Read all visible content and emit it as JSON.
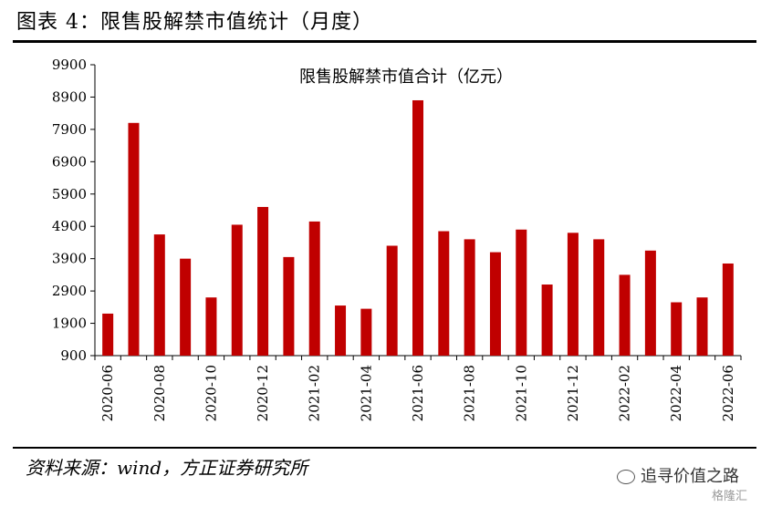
{
  "figure_title": "图表 4：限售股解禁市值统计（月度）",
  "source": "资料来源：wind，方正证券研究所",
  "watermark": "追寻价值之路",
  "watermark_logo": "格隆汇",
  "colors": {
    "bar": "#C00000",
    "axis": "#000000"
  },
  "chart_data": {
    "type": "bar",
    "title": "限售股解禁市值合计（亿元）",
    "xlabel": "",
    "ylabel": "",
    "ylim": [
      900,
      9900
    ],
    "yticks": [
      900,
      1900,
      2900,
      3900,
      4900,
      5900,
      6900,
      7900,
      8900,
      9900
    ],
    "categories": [
      "2020-06",
      "2020-07",
      "2020-08",
      "2020-09",
      "2020-10",
      "2020-11",
      "2020-12",
      "2021-01",
      "2021-02",
      "2021-03",
      "2021-04",
      "2021-05",
      "2021-06",
      "2021-07",
      "2021-08",
      "2021-09",
      "2021-10",
      "2021-11",
      "2021-12",
      "2022-01",
      "2022-02",
      "2022-03",
      "2022-04",
      "2022-05",
      "2022-06"
    ],
    "xtick_labels": [
      "2020-06",
      "2020-08",
      "2020-10",
      "2020-12",
      "2021-02",
      "2021-04",
      "2021-06",
      "2021-08",
      "2021-10",
      "2021-12",
      "2022-02",
      "2022-04",
      "2022-06"
    ],
    "values": [
      2200,
      8100,
      4650,
      3900,
      2700,
      4950,
      5500,
      3950,
      5050,
      2450,
      2350,
      4300,
      8800,
      4750,
      4500,
      4100,
      4800,
      3100,
      4700,
      4500,
      3400,
      4150,
      2550,
      2700,
      3750
    ],
    "grid": false,
    "legend": "none"
  }
}
